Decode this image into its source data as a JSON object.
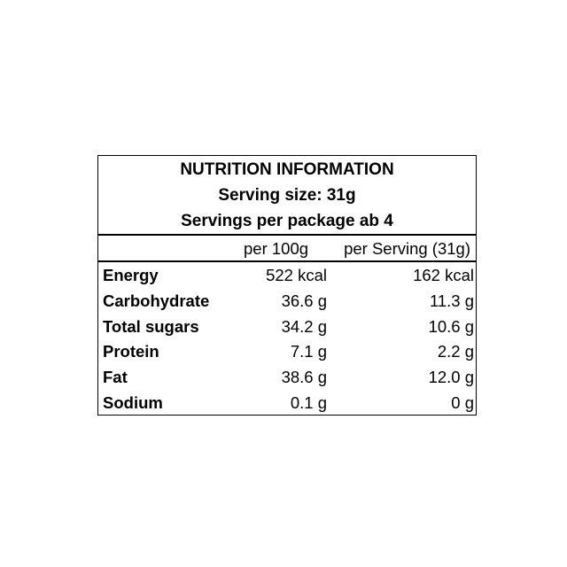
{
  "header": {
    "title": "NUTRITION INFORMATION",
    "serving_size": "Serving size: 31g",
    "servings_per_package": "Servings per package ab 4"
  },
  "table": {
    "columns": [
      "per 100g",
      "per Serving (31g)"
    ],
    "rows": [
      [
        "Energy",
        "522 kcal",
        "162 kcal"
      ],
      [
        "Carbohydrate",
        "36.6 g",
        "11.3 g"
      ],
      [
        "Total sugars",
        "34.2 g",
        "10.6 g"
      ],
      [
        "Protein",
        "7.1 g",
        "2.2 g"
      ],
      [
        "Fat",
        "38.6 g",
        "12.0 g"
      ],
      [
        "Sodium",
        "0.1 g",
        "0 g"
      ]
    ]
  }
}
